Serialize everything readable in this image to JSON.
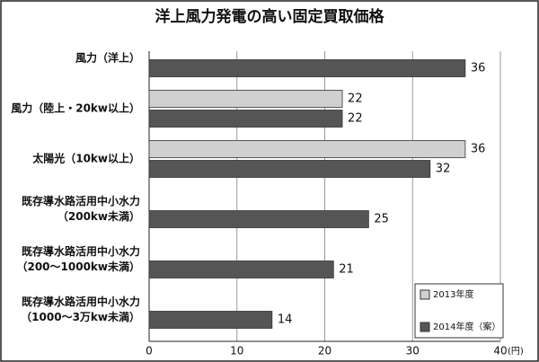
{
  "chart_data": {
    "type": "hbar",
    "title": "洋上風力発電の高い固定買取価格",
    "categories": [
      "風力（洋上）",
      "風力（陸上・20kw以上）",
      "太陽光（10kw以上）",
      "既存導水路活用中小水力\n（200kw未満）",
      "既存導水路活用中小水力\n（200～1000kw未満）",
      "既存導水路活用中小水力\n（1000～3万kw未満）"
    ],
    "series": [
      {
        "name": "2013年度",
        "color": "#d0d0d0",
        "values": [
          null,
          22,
          36,
          null,
          null,
          null
        ]
      },
      {
        "name": "2014年度（案）",
        "color": "#555555",
        "values": [
          36,
          22,
          32,
          25,
          21,
          14
        ]
      }
    ],
    "xlim": [
      0,
      40
    ],
    "xticks": [
      0,
      10,
      20,
      30,
      40
    ],
    "x_unit": "(円)",
    "grid": true,
    "legend": "bottom-right"
  }
}
